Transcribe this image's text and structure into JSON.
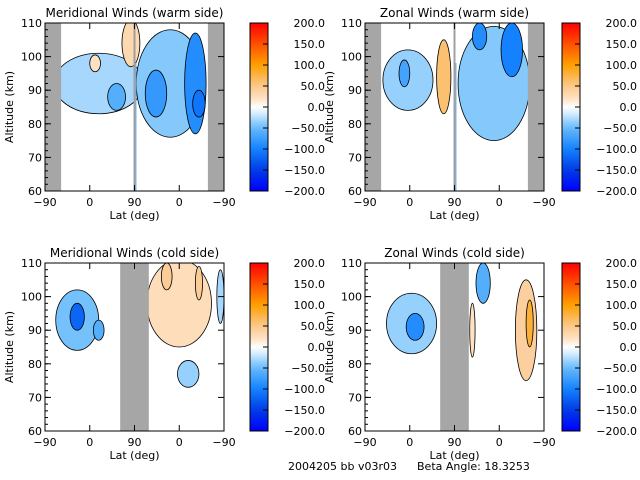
{
  "chart_data": [
    {
      "type": "heatmap",
      "title": "Meridional Winds (warm side)",
      "xlabel": "Lat (deg)",
      "ylabel": "Altitude (km)",
      "xticks": [
        "-90",
        "0",
        "90",
        "0",
        "-90"
      ],
      "yticks": [
        "60",
        "70",
        "80",
        "90",
        "100",
        "110"
      ],
      "ylim": [
        60,
        110
      ],
      "colorbar": {
        "min": -200,
        "max": 200,
        "ticks": [
          "200.0",
          "150.0",
          "100.0",
          "50.0",
          "0.0",
          "-50.0",
          "-100.0",
          "-150.0",
          "-200.0"
        ]
      },
      "masked_regions": [
        [
          0,
          0.09
        ],
        [
          0.91,
          1.0
        ]
      ],
      "blobs": [
        {
          "lat": 0.3,
          "alt": 92,
          "w": 0.5,
          "h": 18,
          "v": -30
        },
        {
          "lat": 0.4,
          "alt": 88,
          "w": 0.1,
          "h": 8,
          "v": -60
        },
        {
          "lat": 0.28,
          "alt": 98,
          "w": 0.06,
          "h": 5,
          "v": 20
        },
        {
          "lat": 0.48,
          "alt": 104,
          "w": 0.1,
          "h": 14,
          "v": 30
        },
        {
          "lat": 0.7,
          "alt": 92,
          "w": 0.38,
          "h": 32,
          "v": -40
        },
        {
          "lat": 0.62,
          "alt": 89,
          "w": 0.12,
          "h": 14,
          "v": -80
        },
        {
          "lat": 0.84,
          "alt": 92,
          "w": 0.12,
          "h": 30,
          "v": -90
        },
        {
          "lat": 0.86,
          "alt": 86,
          "w": 0.07,
          "h": 8,
          "v": -110
        }
      ]
    },
    {
      "type": "heatmap",
      "title": "Zonal Winds (warm side)",
      "xlabel": "Lat (deg)",
      "ylabel": "Altitude (km)",
      "xticks": [
        "-90",
        "0",
        "90",
        "0",
        "-90"
      ],
      "yticks": [
        "60",
        "70",
        "80",
        "90",
        "100",
        "110"
      ],
      "ylim": [
        60,
        110
      ],
      "colorbar": {
        "min": -200,
        "max": 200,
        "ticks": [
          "200.0",
          "150.0",
          "100.0",
          "50.0",
          "0.0",
          "-50.0",
          "-100.0",
          "-150.0",
          "-200.0"
        ]
      },
      "masked_regions": [
        [
          0,
          0.09
        ],
        [
          0.91,
          1.0
        ]
      ],
      "blobs": [
        {
          "lat": 0.24,
          "alt": 93,
          "w": 0.28,
          "h": 18,
          "v": -35
        },
        {
          "lat": 0.22,
          "alt": 95,
          "w": 0.06,
          "h": 8,
          "v": -70
        },
        {
          "lat": 0.44,
          "alt": 94,
          "w": 0.08,
          "h": 22,
          "v": 60
        },
        {
          "lat": 0.72,
          "alt": 92,
          "w": 0.4,
          "h": 34,
          "v": -40
        },
        {
          "lat": 0.82,
          "alt": 102,
          "w": 0.12,
          "h": 16,
          "v": -100
        },
        {
          "lat": 0.64,
          "alt": 106,
          "w": 0.08,
          "h": 8,
          "v": -90
        }
      ]
    },
    {
      "type": "heatmap",
      "title": "Meridional Winds (cold side)",
      "xlabel": "Lat (deg)",
      "ylabel": "Altitude (km)",
      "xticks": [
        "-90",
        "0",
        "90",
        "0",
        "-90"
      ],
      "yticks": [
        "60",
        "70",
        "80",
        "90",
        "100",
        "110"
      ],
      "ylim": [
        60,
        110
      ],
      "colorbar": {
        "min": -200,
        "max": 200,
        "ticks": [
          "200.0",
          "150.0",
          "100.0",
          "50.0",
          "0.0",
          "-50.0",
          "-100.0",
          "-150.0",
          "-200.0"
        ]
      },
      "masked_regions": [
        [
          0.42,
          0.58
        ]
      ],
      "blobs": [
        {
          "lat": 0.18,
          "alt": 93,
          "w": 0.24,
          "h": 18,
          "v": -45
        },
        {
          "lat": 0.18,
          "alt": 94,
          "w": 0.08,
          "h": 8,
          "v": -120
        },
        {
          "lat": 0.3,
          "alt": 90,
          "w": 0.06,
          "h": 6,
          "v": -60
        },
        {
          "lat": 0.75,
          "alt": 98,
          "w": 0.36,
          "h": 26,
          "v": 25
        },
        {
          "lat": 0.68,
          "alt": 106,
          "w": 0.06,
          "h": 8,
          "v": 45
        },
        {
          "lat": 0.86,
          "alt": 104,
          "w": 0.04,
          "h": 10,
          "v": 45
        },
        {
          "lat": 0.8,
          "alt": 77,
          "w": 0.12,
          "h": 8,
          "v": -35
        },
        {
          "lat": 0.98,
          "alt": 100,
          "w": 0.04,
          "h": 16,
          "v": -30
        }
      ]
    },
    {
      "type": "heatmap",
      "title": "Zonal Winds (cold side)",
      "xlabel": "Lat (deg)",
      "ylabel": "Altitude (km)",
      "xticks": [
        "-90",
        "0",
        "90",
        "0",
        "-90"
      ],
      "yticks": [
        "60",
        "70",
        "80",
        "90",
        "100",
        "110"
      ],
      "ylim": [
        60,
        110
      ],
      "colorbar": {
        "min": -200,
        "max": 200,
        "ticks": [
          "200.0",
          "150.0",
          "100.0",
          "50.0",
          "0.0",
          "-50.0",
          "-100.0",
          "-150.0",
          "-200.0"
        ]
      },
      "masked_regions": [
        [
          0.42,
          0.58
        ]
      ],
      "blobs": [
        {
          "lat": 0.26,
          "alt": 92,
          "w": 0.28,
          "h": 18,
          "v": -35
        },
        {
          "lat": 0.28,
          "alt": 91,
          "w": 0.1,
          "h": 8,
          "v": -90
        },
        {
          "lat": 0.66,
          "alt": 104,
          "w": 0.08,
          "h": 12,
          "v": -60
        },
        {
          "lat": 0.9,
          "alt": 90,
          "w": 0.12,
          "h": 30,
          "v": 40
        },
        {
          "lat": 0.92,
          "alt": 92,
          "w": 0.04,
          "h": 14,
          "v": 80
        },
        {
          "lat": 0.6,
          "alt": 90,
          "w": 0.03,
          "h": 16,
          "v": 20
        }
      ]
    }
  ],
  "footer": {
    "id_text": "2004205 bb v03r03",
    "beta_text": "Beta Angle: 18.3253"
  }
}
